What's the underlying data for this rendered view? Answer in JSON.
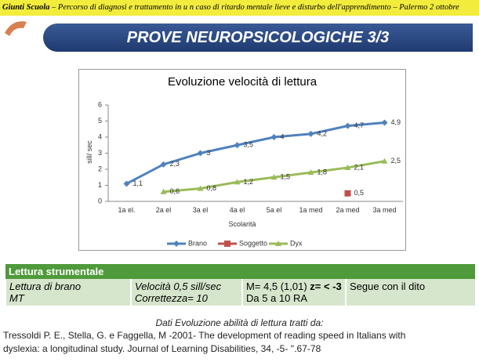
{
  "header": {
    "brand": "Giunti Scuola",
    "text": "– Percorso di diagnosi e trattamento in u n caso di ritardo mentale lieve e disturbo dell'apprendimento – Palermo 2 ottobre"
  },
  "slide_title": "PROVE NEUROPSICOLOGICHE 3/3",
  "chart_data": {
    "type": "line",
    "title": "Evoluzione velocità di lettura",
    "x_label": "Scolarità",
    "y_label": "sill/ sec",
    "categories": [
      "1a el.",
      "2a el",
      "3a el",
      "4a el",
      "5a el",
      "1a med",
      "2a med",
      "3a med"
    ],
    "ylim": [
      0,
      6
    ],
    "yticks": [
      0,
      1,
      2,
      3,
      4,
      5,
      6
    ],
    "grid": false,
    "legend": "bottom",
    "series": [
      {
        "name": "Brano",
        "color": "#4f81bd",
        "marker": "diamond",
        "values": [
          1.1,
          2.3,
          3,
          3.5,
          4,
          4.2,
          4.7,
          4.9
        ],
        "value_labels": [
          "1,1",
          "2,3",
          "3",
          "3,5",
          "4",
          "4,2",
          "4,7",
          "4,9"
        ]
      },
      {
        "name": "Soggetto",
        "color": "#c0504d",
        "marker": "square",
        "values": [
          null,
          null,
          null,
          null,
          null,
          null,
          0.5,
          null
        ],
        "value_labels": [
          null,
          null,
          null,
          null,
          null,
          null,
          "0,5",
          null
        ]
      },
      {
        "name": "Dyx",
        "color": "#9bbb59",
        "marker": "triangle",
        "values": [
          null,
          0.6,
          0.8,
          1.2,
          1.5,
          1.8,
          2.1,
          2.5
        ],
        "value_labels": [
          null,
          "0,6",
          "0,8",
          "1,2",
          "1,5",
          "1,8",
          "2,1",
          "2,5"
        ]
      }
    ]
  },
  "table": {
    "header": "Lettura strumentale",
    "rows": [
      [
        [
          "Lettura di brano",
          "MT"
        ],
        [
          "Velocità 0,5 sill/sec",
          "Correttezza= 10"
        ],
        [
          "M= 4,5 (1,01) ",
          "z= < -3",
          "Da 5 a 10 RA"
        ],
        [
          "Segue con il dito"
        ]
      ]
    ]
  },
  "footer": {
    "caption": "Dati Evoluzione abilità di lettura tratti da:",
    "reference": [
      "Tressoldi P. E., Stella, G. e Faggella, M -2001- The development of reading speed in Italians with",
      "dyslexia: a longitudinal study. Journal of Learning Disabilities, 34, -5- ''.67-78"
    ]
  }
}
